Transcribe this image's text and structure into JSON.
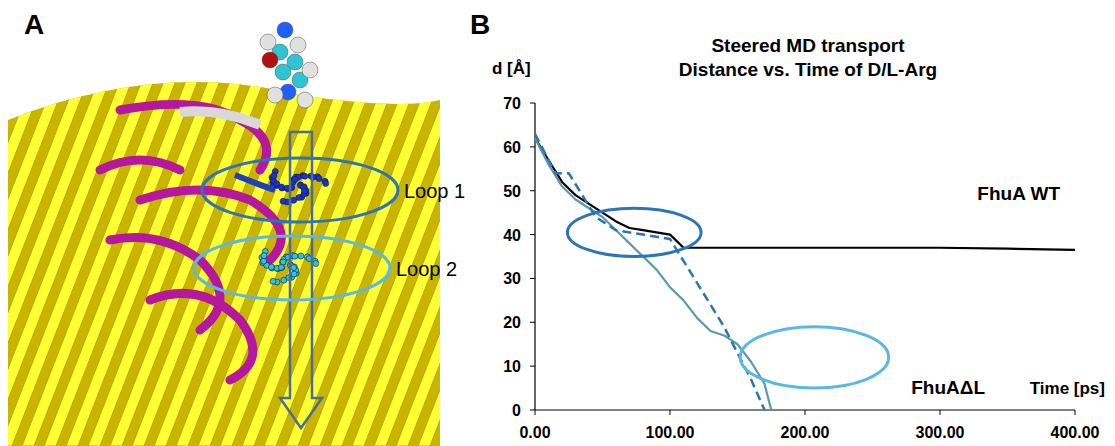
{
  "panel_a": {
    "letter": "A",
    "labels": [
      "Loop 1",
      "Loop 2"
    ],
    "label_colors": [
      "#2e75b6",
      "#5bb8e0"
    ]
  },
  "chart_data": {
    "type": "line",
    "letter": "B",
    "title": "Steered MD transport",
    "subtitle": "Distance vs. Time of D/L-Arg",
    "x_label": "Time [ps]",
    "y_label": "d [Å]",
    "xlim": [
      0,
      400
    ],
    "ylim": [
      0,
      70
    ],
    "xticks": [
      {
        "value": 0,
        "label": "0.00"
      },
      {
        "value": 100,
        "label": "100.00"
      },
      {
        "value": 200,
        "label": "200.00"
      },
      {
        "value": 300,
        "label": "300.00"
      },
      {
        "value": 400,
        "label": "400.00"
      }
    ],
    "yticks": [
      0,
      10,
      20,
      30,
      40,
      50,
      60,
      70
    ],
    "grid": false,
    "series": [
      {
        "name": "FhuA WT",
        "color": "#000000",
        "line_style": "solid",
        "x": [
          0,
          10,
          20,
          30,
          40,
          50,
          60,
          70,
          80,
          90,
          100,
          105,
          110,
          120,
          140,
          160,
          200,
          250,
          300,
          350,
          400
        ],
        "values": [
          62,
          57,
          52,
          49,
          47,
          45,
          43,
          41.5,
          41,
          40.5,
          40,
          38.5,
          37,
          37,
          37,
          37,
          37,
          37,
          37,
          36.8,
          36.5
        ]
      },
      {
        "name": "FhuAΔL",
        "color": "#5b9aa8",
        "line_style": "solid",
        "x": [
          0,
          10,
          20,
          30,
          40,
          50,
          60,
          70,
          80,
          90,
          100,
          110,
          120,
          130,
          140,
          150,
          160,
          170,
          175
        ],
        "values": [
          62,
          56,
          51,
          48,
          46,
          44,
          41,
          38,
          35,
          32,
          28,
          25,
          21,
          18,
          17,
          15,
          11,
          6,
          0
        ]
      },
      {
        "color": "#2e75b6",
        "line_style": "dashed",
        "x": [
          0,
          10,
          15,
          25,
          35,
          45,
          60,
          80,
          100,
          110,
          120,
          130,
          140,
          150,
          160,
          170
        ],
        "values": [
          63,
          57,
          54,
          54,
          49,
          44,
          41,
          40,
          39,
          34,
          29,
          24,
          19,
          13,
          7,
          0
        ]
      }
    ],
    "highlights": [
      {
        "x": [
          24,
          123
        ],
        "y": [
          35,
          46
        ],
        "color": "#2e75b6"
      },
      {
        "x": [
          152,
          262
        ],
        "y": [
          5,
          19
        ],
        "color": "#5bb8e0"
      }
    ]
  }
}
